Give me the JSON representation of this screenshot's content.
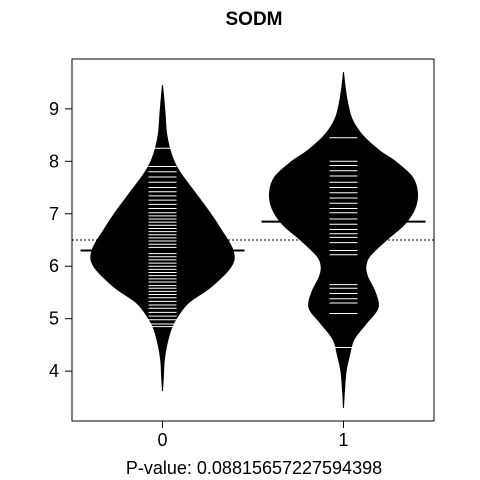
{
  "chart_data": {
    "type": "beanplot",
    "title": "SODM",
    "xlabel": "P-value: 0.08815657227594398",
    "ylabel": "",
    "categories": [
      "0",
      "1"
    ],
    "ylim": [
      3.05,
      9.95
    ],
    "yticks": [
      4,
      5,
      6,
      7,
      8,
      9
    ],
    "overall_mean": 6.5,
    "beans": [
      {
        "category": "0",
        "mean": 6.3,
        "range": [
          3.62,
          9.45
        ],
        "density": [
          [
            3.62,
            0.0
          ],
          [
            3.9,
            0.01
          ],
          [
            4.2,
            0.02
          ],
          [
            4.5,
            0.05
          ],
          [
            4.8,
            0.1
          ],
          [
            5.0,
            0.16
          ],
          [
            5.3,
            0.3
          ],
          [
            5.6,
            0.56
          ],
          [
            6.0,
            0.8
          ],
          [
            6.3,
            0.82
          ],
          [
            6.7,
            0.68
          ],
          [
            7.0,
            0.56
          ],
          [
            7.4,
            0.38
          ],
          [
            7.8,
            0.2
          ],
          [
            8.1,
            0.11
          ],
          [
            8.5,
            0.05
          ],
          [
            8.9,
            0.03
          ],
          [
            9.2,
            0.015
          ],
          [
            9.45,
            0.0
          ]
        ],
        "observations": [
          4.85,
          4.9,
          4.98,
          5.05,
          5.12,
          5.2,
          5.26,
          5.33,
          5.4,
          5.46,
          5.52,
          5.58,
          5.63,
          5.7,
          5.76,
          5.82,
          5.88,
          5.94,
          6.0,
          6.06,
          6.12,
          6.18,
          6.24,
          6.3,
          6.36,
          6.42,
          6.48,
          6.54,
          6.6,
          6.66,
          6.72,
          6.78,
          6.84,
          6.9,
          6.96,
          7.02,
          7.1,
          7.18,
          7.26,
          7.34,
          7.42,
          7.5,
          7.6,
          7.7,
          7.8,
          7.9,
          8.25
        ]
      },
      {
        "category": "1",
        "mean": 6.85,
        "range": [
          3.3,
          9.7
        ],
        "density": [
          [
            3.3,
            0.0
          ],
          [
            3.6,
            0.01
          ],
          [
            4.0,
            0.03
          ],
          [
            4.3,
            0.07
          ],
          [
            4.6,
            0.12
          ],
          [
            4.9,
            0.26
          ],
          [
            5.2,
            0.4
          ],
          [
            5.5,
            0.37
          ],
          [
            5.8,
            0.28
          ],
          [
            6.0,
            0.26
          ],
          [
            6.2,
            0.31
          ],
          [
            6.5,
            0.5
          ],
          [
            6.8,
            0.71
          ],
          [
            7.1,
            0.83
          ],
          [
            7.4,
            0.86
          ],
          [
            7.7,
            0.8
          ],
          [
            8.0,
            0.6
          ],
          [
            8.2,
            0.42
          ],
          [
            8.5,
            0.22
          ],
          [
            8.8,
            0.1
          ],
          [
            9.1,
            0.05
          ],
          [
            9.4,
            0.02
          ],
          [
            9.7,
            0.0
          ]
        ],
        "observations": [
          4.45,
          5.1,
          5.3,
          5.38,
          5.48,
          5.58,
          5.65,
          6.22,
          6.3,
          6.45,
          6.55,
          6.62,
          6.7,
          6.8,
          6.9,
          7.02,
          7.1,
          7.2,
          7.3,
          7.4,
          7.5,
          7.6,
          7.72,
          7.82,
          7.92,
          8.0,
          8.45
        ]
      }
    ]
  }
}
